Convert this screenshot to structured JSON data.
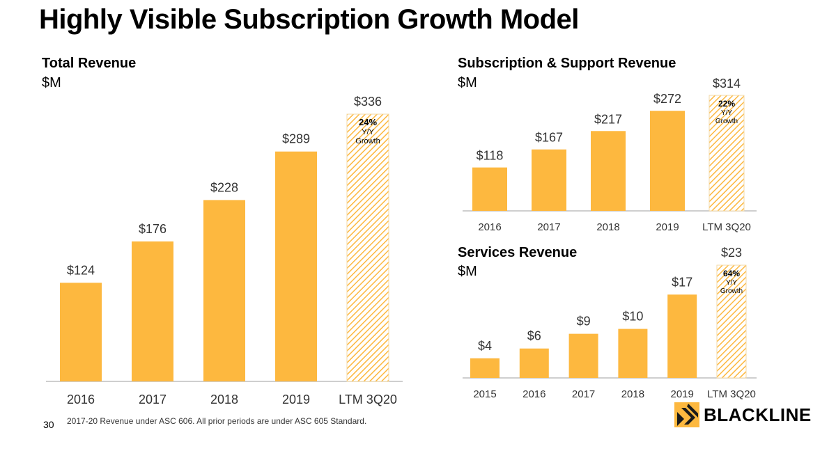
{
  "page": {
    "title": "Highly Visible Subscription Growth Model",
    "page_number": "30",
    "footnote": "2017-20 Revenue under ASC 606.  All prior periods are under ASC 605 Standard.",
    "logo_text": "BLACKLINE"
  },
  "colors": {
    "bar": "#FDB83F",
    "hatch": "#FDB83F",
    "axis": "#bfbfbf",
    "label": "#333333"
  },
  "chart_data": [
    {
      "id": "total",
      "type": "bar",
      "title": "Total Revenue",
      "unit": "$M",
      "categories": [
        "2016",
        "2017",
        "2018",
        "2019",
        "LTM 3Q20"
      ],
      "values": [
        124,
        176,
        228,
        289,
        336
      ],
      "labels": [
        "$124",
        "$176",
        "$228",
        "$289",
        "$336"
      ],
      "hatched_last": true,
      "growth": {
        "pct": "24%",
        "line1": "Y/Y",
        "line2": "Growth"
      }
    },
    {
      "id": "subscription",
      "type": "bar",
      "title": "Subscription & Support Revenue",
      "unit": "$M",
      "categories": [
        "2016",
        "2017",
        "2018",
        "2019",
        "LTM 3Q20"
      ],
      "values": [
        118,
        167,
        217,
        272,
        314
      ],
      "labels": [
        "$118",
        "$167",
        "$217",
        "$272",
        "$314"
      ],
      "hatched_last": true,
      "growth": {
        "pct": "22%",
        "line1": "Y/Y",
        "line2": "Growth"
      }
    },
    {
      "id": "services",
      "type": "bar",
      "title": "Services Revenue",
      "unit": "$M",
      "categories": [
        "2015",
        "2016",
        "2017",
        "2018",
        "2019",
        "LTM 3Q20"
      ],
      "values": [
        4,
        6,
        9,
        10,
        17,
        23
      ],
      "labels": [
        "$4",
        "$6",
        "$9",
        "$10",
        "$17",
        "$23"
      ],
      "hatched_last": true,
      "growth": {
        "pct": "64%",
        "line1": "Y/Y",
        "line2": "Growth"
      }
    }
  ]
}
